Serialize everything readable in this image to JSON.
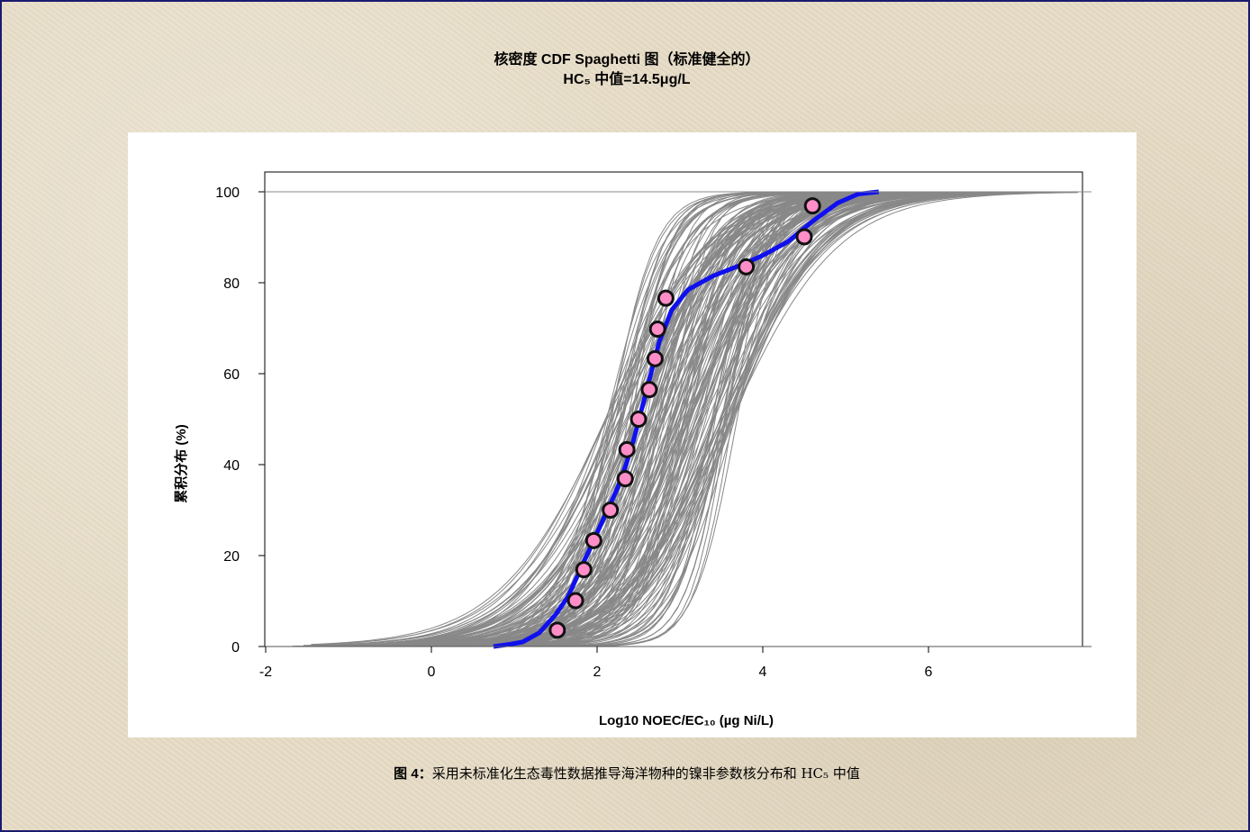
{
  "title": "核密度 CDF Spaghetti 图（标准健全的）",
  "subtitle": "HC₅ 中值=14.5μg/L",
  "caption": {
    "label": "图 4",
    "separator": "：",
    "text": "采用未标准化生态毒性数据推导海洋物种的镍非参数核分布和 HC₅ 中值"
  },
  "chart_data": {
    "type": "line",
    "xlabel": "Log10 NOEC/EC₁₀ (µg Ni/L)",
    "ylabel": "累积分布 (%)",
    "xlim": [
      -2,
      7.8
    ],
    "ylim": [
      0,
      100
    ],
    "xticks": [
      "-2",
      "0",
      "2",
      "4",
      "6"
    ],
    "yticks": [
      "0",
      "20",
      "40",
      "60",
      "80",
      "100"
    ],
    "grid": false,
    "colors": {
      "spaghetti": "#888888",
      "median_curve": "#1010ee",
      "points_fill": "#ff8ec8",
      "points_edge": "#111111",
      "frame": "#1a1a6e"
    },
    "median_curve": {
      "x": [
        0.75,
        0.95,
        1.1,
        1.3,
        1.5,
        1.65,
        1.8,
        1.95,
        2.1,
        2.25,
        2.35,
        2.45,
        2.55,
        2.65,
        2.75,
        2.9,
        3.1,
        3.4,
        3.75,
        4.0,
        4.3,
        4.6,
        4.9,
        5.15,
        5.4
      ],
      "y": [
        0,
        0.5,
        1,
        3,
        7,
        11,
        17,
        23,
        29,
        35,
        40,
        46,
        53,
        60,
        67,
        74,
        78.5,
        81.5,
        84,
        86,
        89,
        93.5,
        97.5,
        99.5,
        100
      ]
    },
    "points": {
      "x": [
        1.52,
        1.74,
        1.84,
        1.96,
        2.16,
        2.34,
        2.36,
        2.5,
        2.63,
        2.7,
        2.73,
        2.83,
        3.8,
        4.5,
        4.6
      ],
      "y": [
        3.6,
        10.1,
        16.9,
        23.3,
        30.0,
        36.9,
        43.3,
        50.0,
        56.5,
        63.3,
        69.8,
        76.6,
        83.5,
        90.1,
        96.9
      ]
    },
    "spaghetti_count": 170
  }
}
